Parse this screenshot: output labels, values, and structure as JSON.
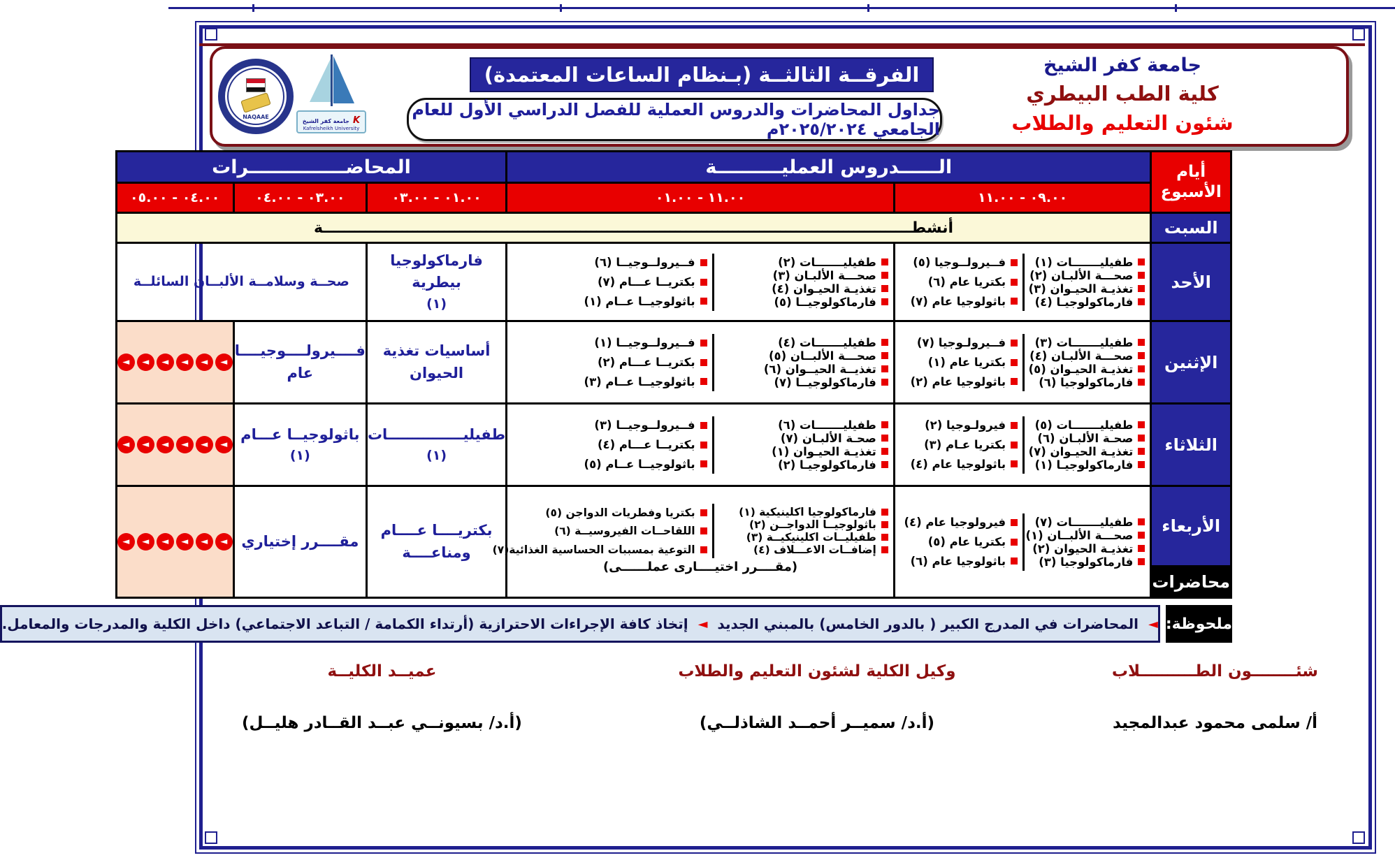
{
  "colors": {
    "navy": "#26269c",
    "red": "#e80000",
    "maroon": "#8f1010",
    "cream": "#fbf8d8",
    "pink": "#fbddc9",
    "note_bg": "#d9e4f1",
    "lecture_text": "#1f1f99"
  },
  "header": {
    "university": "جامعة كفر الشيخ",
    "faculty": "كلية الطب البيطري",
    "office": "شئون التعليم والطلاب",
    "grade_badge": "الفرقــة الثالثــة (بـنظام الساعات المعتمدة)",
    "subtitle": "جداول المحاضرات والدروس العملية للفصل الدراسي الأول للعام الجامعي ٢٠٢٥/٢٠٢٤م",
    "univ_logo_caption_ar": "جامعة كفر الشيخ",
    "univ_logo_caption_en": "Kafrelsheikh University",
    "univ_logo_letter": "K",
    "naqaae_logo_text": "NAQAAE"
  },
  "table": {
    "days_header_line1": "أيام",
    "days_header_line2": "الأسبوع",
    "practical_header": "الــــــدروس العمليــــــــــة",
    "lectures_header": "المحاضـــــــــــــــرات",
    "times": {
      "p1": "٠٩.٠٠ - ١١.٠٠",
      "p2": "١١.٠٠ - ٠١.٠٠",
      "l1": "٠١.٠٠  -  ٠٣.٠٠",
      "l2": "٠٣.٠٠ - ٠٤.٠٠",
      "l3": "٠٤.٠٠ - ٠٥.٠٠"
    },
    "saturday": {
      "day": "السبت",
      "activity": "أنشطــــــــــــــــــــــــــــــــــــــــــــــــــــــــــــــــــــــــــــــــــــــــــــــــــــــــــــــــة"
    },
    "lectures_label": "محاضرات",
    "rows": {
      "sun": {
        "day": "الأحد",
        "p1_right": [
          "طفيليـــــــات (١)",
          "صحـــة الألبـان (٢)",
          "تغذيـة الحيـوان (٣)",
          "فارماكولوجيـا (٤)"
        ],
        "p1_left": [
          "فــيرولــوجيا (٥)",
          "بكتريا عام (٦)",
          "باثولوجيا عام (٧)"
        ],
        "p2_right": [
          "طفيليـــــــات (٢)",
          "صحـــة الألبـان (٣)",
          "تغذيـة الحيـوان (٤)",
          "فارماكولوجيــا (٥)"
        ],
        "p2_left": [
          "فــيرولــوجيــا (٦)",
          "بكتريــا عـــام (٧)",
          "باثولوجيــا عــام (١)"
        ],
        "lec1_line1": "فارماكولوجيا بيطرية",
        "lec1_line2": "(١)",
        "lec_merged": "صحــة وسلامــة الألبــان السائلــة"
      },
      "mon": {
        "day": "الإثنين",
        "p1_right": [
          "طفيليـــــــات (٣)",
          "صحـــة الألبـان (٤)",
          "تغذيـة الحيـوان (٥)",
          "فارماكولوجيا (٦)"
        ],
        "p1_left": [
          "فــيرولـوجيا (٧)",
          "بكتريا عام (١)",
          "باثولوجيا عام (٢)"
        ],
        "p2_right": [
          "طفيليـــــــات (٤)",
          "صحـــة الألبــان (٥)",
          "تغذيــة الحيــوان (٦)",
          "فارماكولوجيــا (٧)"
        ],
        "p2_left": [
          "فــيرولــوجيــا (١)",
          "بكتريــا عـــام (٢)",
          "باثولوجيــا عــام (٣)"
        ],
        "lec1": "أساسيات تغذية الحيوان",
        "lec2_line1": "فــــيرولــــوجيــــا",
        "lec2_line2": "عام",
        "blocked_count": 6
      },
      "tue": {
        "day": "الثلاثاء",
        "p1_right": [
          "طفيليـــــــات (٥)",
          "صحـة الألبـان (٦)",
          "تغذيـة الحيـوان (٧)",
          "فارماكولوجيـا (١)"
        ],
        "p1_left": [
          "فيرولـوجيا (٢)",
          "بكتريا عـام (٣)",
          "باثولوجيا عام (٤)"
        ],
        "p2_right": [
          "طفيليـــــــات (٦)",
          "صحـة الألبـان (٧)",
          "تغذيـة الحيـوان (١)",
          "فارماكولوجيـا (٢)"
        ],
        "p2_left": [
          "فــيرولــوجيــا (٣)",
          "بكتريــا عـــام (٤)",
          "باثولوجيــا عــام (٥)"
        ],
        "lec1_line1": "طفيليـــــــــــــــات",
        "lec1_line2": "(١)",
        "lec2_line1": "باثولوجيــا عـــام",
        "lec2_line2": "(١)",
        "blocked_count": 6
      },
      "wed": {
        "day": "الأربعاء",
        "p1_right": [
          "طفيليـــــــات (٧)",
          "صحـــة الألبــان (١)",
          "تغذيـة الحيوان (٢)",
          "فارماكولوجيا (٣)"
        ],
        "p1_left": [
          "فيرولوجيا عام (٤)",
          "بكتريا عام (٥)",
          "باثولوجيا عام (٦)"
        ],
        "p2_right": [
          "فارماكولوجيا اكلينيكية (١)",
          "باثولوجيــا الدواجــن (٢)",
          "طفيليــات اكلينيكيــة (٣)",
          "إضافــات الاعـــلاف (٤)"
        ],
        "p2_left": [
          "بكتريا وفطريات الدواجن (٥)",
          "اللقاحــات الفيروسيــة (٦)",
          "التوعية بمسببات الحساسية الغذائية(٧)"
        ],
        "p2_footer": "(مقــــرر اختيــــارى عملــــــى)",
        "lec1": "بكتريــــا عــــام ومناعــــة",
        "lec2": "مقــــرر إختياري",
        "blocked_count": 6
      }
    }
  },
  "note": {
    "label": "ملحوظة:",
    "arrow": "◄",
    "part1": "المحاضرات في المدرج الكبير ( بالدور الخامس) بالمبني الجديد",
    "part2": "إتخاذ كافة الإجراءات الاحترازية (أرتداء الكمامة / التباعد الاجتماعي) داخل الكلية والمدرجات والمعامل."
  },
  "signatures": {
    "right_title": "شئــــــــون الطــــــــــلاب",
    "right_name": "أ/ سلمى محمود عبدالمجيد",
    "center_title": "وكيل الكلية لشئون التعليم والطلاب",
    "center_name": "(أ.د/ سميــر أحمــد الشاذلــي)",
    "left_title": "عميــد الكليــة",
    "left_name": "(أ.د/ بسيونــي عبــد القــادر هليــل)"
  }
}
